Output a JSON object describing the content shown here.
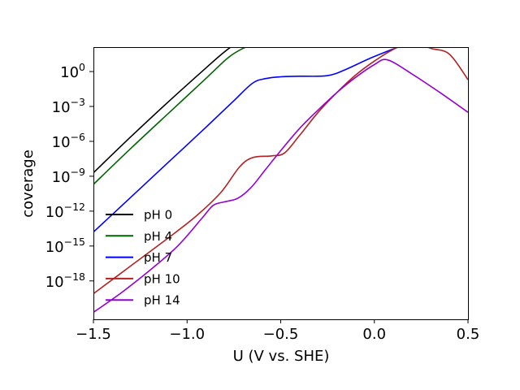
{
  "chart_data": {
    "type": "line",
    "title": "",
    "xlabel": "U (V vs. SHE)",
    "ylabel": "coverage",
    "y_scale": "log",
    "xlim": [
      -1.5,
      0.5
    ],
    "ylim_log10": [
      -21.3,
      2.1
    ],
    "grid": false,
    "legend_position": "lower-left",
    "x_ticks": [
      -1.5,
      -1.0,
      -0.5,
      0.0,
      0.5
    ],
    "x_tick_labels": [
      "−1.5",
      "−1.0",
      "−0.5",
      "0.0",
      "0.5"
    ],
    "y_ticks": [
      {
        "base": "10",
        "exp": "0",
        "value": 1
      },
      {
        "base": "10",
        "exp": "−3",
        "value": 0.001
      },
      {
        "base": "10",
        "exp": "−6",
        "value": 1e-06
      },
      {
        "base": "10",
        "exp": "−9",
        "value": 1e-09
      },
      {
        "base": "10",
        "exp": "−12",
        "value": 1e-12
      },
      {
        "base": "10",
        "exp": "−15",
        "value": 1e-15
      },
      {
        "base": "10",
        "exp": "−18",
        "value": 1e-18
      }
    ],
    "series": [
      {
        "name": "pH 0",
        "color": "#000000",
        "x": [
          -1.5,
          -1.3,
          -1.1,
          -0.9,
          -0.8,
          -0.72,
          -0.66,
          -0.6,
          -0.5,
          -0.3,
          0.0,
          0.3,
          0.5
        ],
        "log10_y": [
          -8.7,
          -5.6,
          -2.6,
          0.3,
          1.7,
          2.6,
          3.0,
          3.07,
          3.1,
          3.1,
          3.1,
          3.1,
          3.1
        ]
      },
      {
        "name": "pH 4",
        "color": "#006400",
        "x": [
          -1.5,
          -1.3,
          -1.1,
          -0.9,
          -0.78,
          -0.7,
          -0.64,
          -0.55,
          -0.3,
          -0.1,
          0.1,
          0.25,
          0.35,
          0.5
        ],
        "log10_y": [
          -9.7,
          -6.6,
          -3.6,
          -0.6,
          1.2,
          2.0,
          2.3,
          2.4,
          2.4,
          2.5,
          2.7,
          3.0,
          3.05,
          3.1
        ]
      },
      {
        "name": "pH 7",
        "color": "#0000ff",
        "x": [
          -1.5,
          -1.3,
          -1.1,
          -0.9,
          -0.75,
          -0.65,
          -0.58,
          -0.5,
          -0.4,
          -0.25,
          -0.15,
          0.0,
          0.2,
          0.35,
          0.5
        ],
        "log10_y": [
          -13.8,
          -10.8,
          -7.8,
          -4.8,
          -2.5,
          -1.0,
          -0.6,
          -0.45,
          -0.4,
          -0.35,
          0.2,
          1.3,
          2.5,
          3.0,
          3.1
        ]
      },
      {
        "name": "pH 10",
        "color": "#b22222",
        "x": [
          -1.5,
          -1.3,
          -1.1,
          -0.95,
          -0.82,
          -0.72,
          -0.65,
          -0.55,
          -0.48,
          -0.4,
          -0.3,
          -0.2,
          -0.1,
          0.0,
          0.1,
          0.2,
          0.3,
          0.4,
          0.5
        ],
        "log10_y": [
          -19.1,
          -16.7,
          -14.3,
          -12.4,
          -10.4,
          -8.2,
          -7.4,
          -7.25,
          -7.0,
          -5.5,
          -3.5,
          -1.8,
          -0.3,
          0.9,
          1.9,
          2.6,
          2.0,
          1.5,
          -0.7
        ]
      },
      {
        "name": "pH 14",
        "color": "#9400d3",
        "x": [
          -1.5,
          -1.35,
          -1.2,
          -1.05,
          -0.92,
          -0.86,
          -0.8,
          -0.73,
          -0.66,
          -0.58,
          -0.5,
          -0.4,
          -0.3,
          -0.2,
          -0.1,
          0.0,
          0.07,
          0.2,
          0.35,
          0.5
        ],
        "log10_y": [
          -20.7,
          -19.0,
          -17.1,
          -15.0,
          -12.6,
          -11.5,
          -11.2,
          -10.9,
          -10.0,
          -8.4,
          -6.8,
          -4.9,
          -3.3,
          -1.8,
          -0.5,
          0.6,
          1.0,
          -0.2,
          -1.8,
          -3.5
        ]
      }
    ]
  }
}
